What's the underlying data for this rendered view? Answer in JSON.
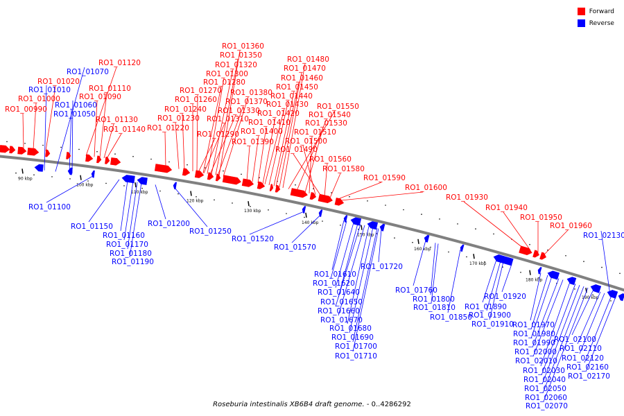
{
  "colors": {
    "forward": "#ff0000",
    "reverse": "#0000ff",
    "backbone": "#808080"
  },
  "legend": [
    {
      "label": "Forward",
      "color": "#ff0000"
    },
    {
      "label": "Reverse",
      "color": "#0000ff"
    }
  ],
  "footer": {
    "organism": "Roseburia intestinalis XB6B4 draft genome.",
    "range": " - 0..4286292"
  },
  "ticks": [
    "90 kbp",
    "100 kbp",
    "110 kbp",
    "120 kbp",
    "130 kbp",
    "140 kbp",
    "150 kbp",
    "160 kbp",
    "170 kbp",
    "180 kbp",
    "190 kbp"
  ],
  "forward_labels": [
    "RO1_00990",
    "RO1_01000",
    "RO1_01020",
    "RO1_01120",
    "RO1_01110",
    "RO1_01090",
    "RO1_01130",
    "RO1_01140",
    "RO1_01360",
    "RO1_01350",
    "RO1_01320",
    "RO1_01300",
    "RO1_01280",
    "RO1_01270",
    "RO1_01260",
    "RO1_01240",
    "RO1_01230",
    "RO1_01220",
    "RO1_01380",
    "RO1_01370",
    "RO1_01330",
    "RO1_01310",
    "RO1_01290",
    "RO1_01480",
    "RO1_01470",
    "RO1_01460",
    "RO1_01450",
    "RO1_01440",
    "RO1_01430",
    "RO1_01420",
    "RO1_01410",
    "RO1_01400",
    "RO1_01390",
    "RO1_01550",
    "RO1_01540",
    "RO1_01530",
    "RO1_01510",
    "RO1_01500",
    "RO1_01490",
    "RO1_01560",
    "RO1_01580",
    "RO1_01590",
    "RO1_01600",
    "RO1_01930",
    "RO1_01940",
    "RO1_01950",
    "RO1_01960"
  ],
  "reverse_labels": [
    "RO1_01070",
    "RO1_01010",
    "RO1_01060",
    "RO1_01050",
    "RO1_01100",
    "RO1_01150",
    "RO1_01160",
    "RO1_01170",
    "RO1_01180",
    "RO1_01190",
    "RO1_01200",
    "RO1_01250",
    "RO1_01520",
    "RO1_01570",
    "RO1_01610",
    "RO1_01620",
    "RO1_01640",
    "RO1_01650",
    "RO1_01660",
    "RO1_01670",
    "RO1_01680",
    "RO1_01690",
    "RO1_01700",
    "RO1_01710",
    "RO1_01720",
    "RO1_01760",
    "RO1_01800",
    "RO1_01810",
    "RO1_01850",
    "RO1_01890",
    "RO1_01900",
    "RO1_01910",
    "RO1_01920",
    "RO1_01970",
    "RO1_01980",
    "RO1_01990",
    "RO1_02000",
    "RO1_02010",
    "RO1_02030",
    "RO1_02040",
    "RO1_02050",
    "RO1_02060",
    "RO1_02070",
    "RO1_02100",
    "RO1_02110",
    "RO1_02120",
    "RO1_02160",
    "RO1_02170",
    "RO1_02130"
  ]
}
